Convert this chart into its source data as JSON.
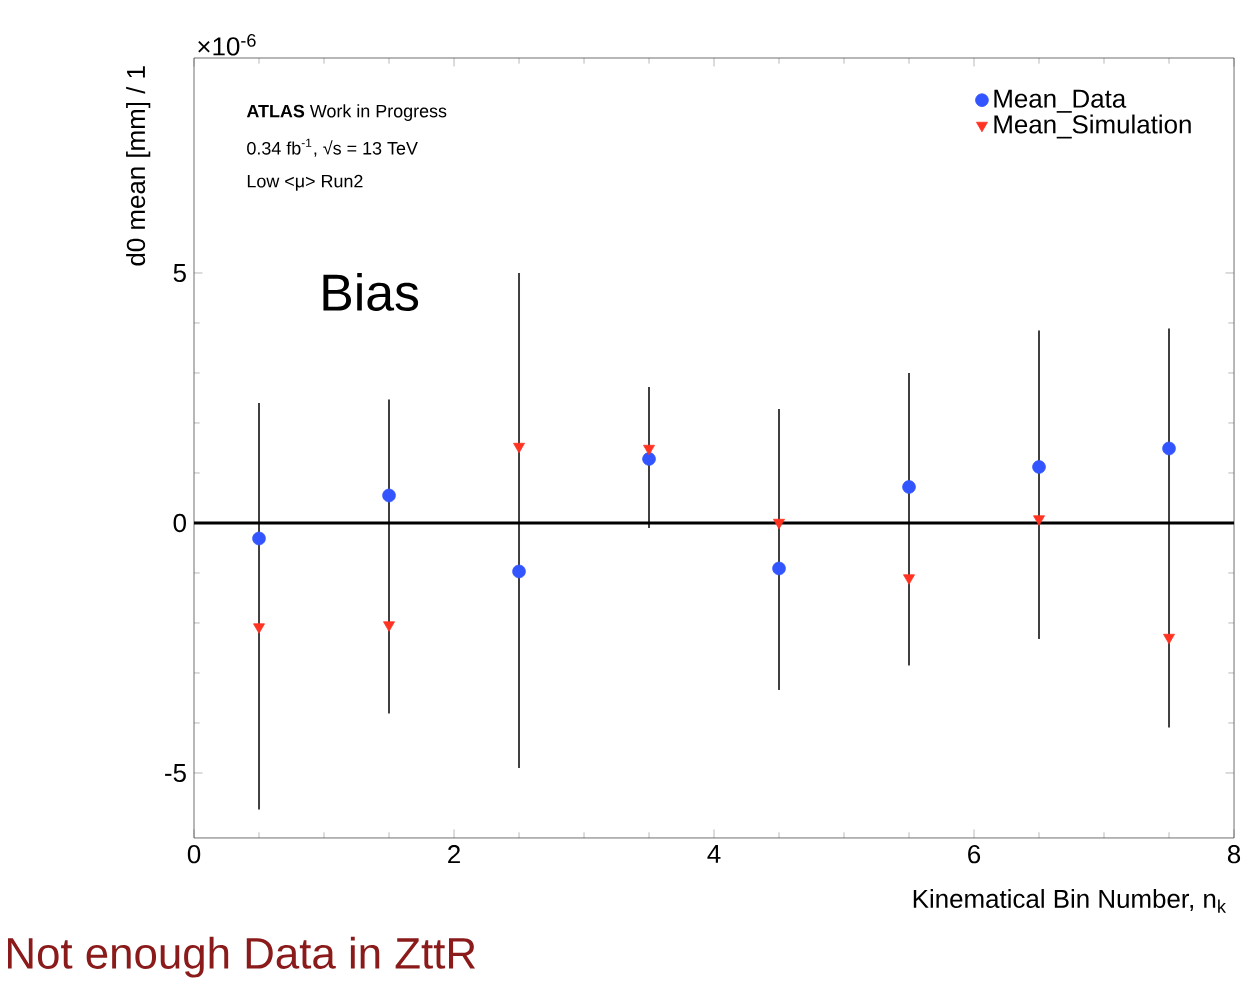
{
  "chart_data": {
    "type": "scatter",
    "xlabel": "Kinematical Bin Number, n$_{k}$",
    "ylabel": "d0 mean [mm] / 1",
    "xlim": [
      0,
      8
    ],
    "ylim": [
      -6.3,
      9.3
    ],
    "xticks": [
      0,
      2,
      4,
      6,
      8
    ],
    "yticks": [
      -5,
      0,
      5
    ],
    "legend": "top right",
    "grid": false,
    "ref_lines": [
      {
        "axis": "y",
        "value": 0,
        "color": "#000000"
      }
    ],
    "series": [
      {
        "name": "Mean_Data",
        "color": "#3355ff",
        "marker": "circle",
        "x": [
          0.5,
          1.5,
          2.5,
          3.5,
          4.5,
          5.5,
          6.5,
          7.5
        ],
        "values": [
          -0.31,
          0.55,
          -0.97,
          1.28,
          -0.91,
          0.72,
          1.12,
          1.49
        ],
        "errors": [
          [
            -5.73,
            2.4
          ],
          [
            -3.81,
            2.47
          ],
          [
            -4.9,
            5.0
          ],
          [
            -0.1,
            2.72
          ],
          [
            -3.34,
            2.28
          ],
          [
            -2.85,
            3.0
          ],
          [
            -2.32,
            3.85
          ],
          [
            -4.09,
            3.89
          ]
        ]
      },
      {
        "name": "Mean_Simulation",
        "color": "#ff3322",
        "marker": "triangle",
        "x": [
          0.5,
          1.5,
          2.5,
          3.5,
          4.5,
          5.5,
          6.5,
          7.5
        ],
        "values": [
          -2.08,
          -2.04,
          1.53,
          1.49,
          0.01,
          -1.1,
          0.08,
          -2.29
        ]
      }
    ],
    "annotations": [
      "×10$^{-6}$",
      "**ATLAS** Work in Progress",
      "0.34 fb$^{-1}$, √s = 13 TeV",
      "Low <μ> Run2",
      "Bias",
      "Not enough Data in ZttR"
    ]
  }
}
